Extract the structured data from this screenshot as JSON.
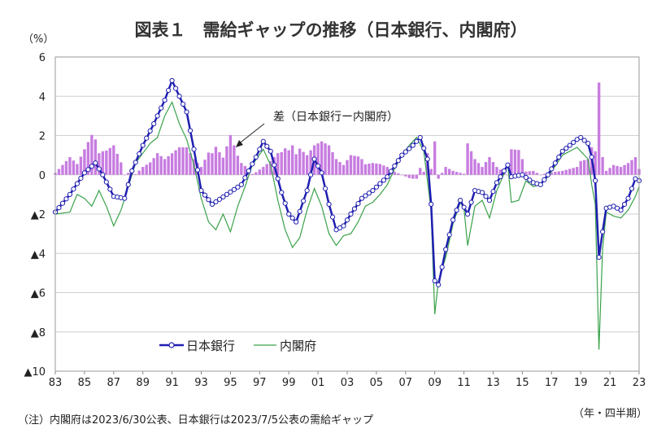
{
  "title": "図表１　需給ギャップの推移（日本銀行、内閣府）",
  "unit_label": "（%）",
  "period_label": "（年・四半期）",
  "note": "（注）内閣府は2023/6/30公表、日本銀行は2023/7/5公表の需給ギャップ",
  "annotation": "差（日本銀行ー内閣府）",
  "colors": {
    "boj": "#1f1fb0",
    "cao": "#3aa24a",
    "diff": "#c77ce0",
    "grid": "#d0d0d0",
    "axis": "#888888"
  },
  "chart_data": {
    "type": "line",
    "title": "図表１　需給ギャップの推移（日本銀行、内閣府）",
    "ylabel": "（%）",
    "xlabel": "（年・四半期）",
    "ylim": [
      -10,
      6
    ],
    "y_ticks": [
      6,
      4,
      2,
      0,
      -2,
      -4,
      -6,
      -8,
      -10
    ],
    "y_tick_labels": [
      "6",
      "4",
      "2",
      "0",
      "▲2",
      "▲4",
      "▲6",
      "▲8",
      "▲10"
    ],
    "x_tick_labels": [
      "83",
      "85",
      "87",
      "89",
      "91",
      "93",
      "95",
      "97",
      "99",
      "01",
      "03",
      "05",
      "07",
      "09",
      "11",
      "13",
      "15",
      "17",
      "19",
      "21",
      "23"
    ],
    "x_range": [
      "1983Q1",
      "2023Q1"
    ],
    "grid": "horizontal",
    "legend": "bottom-left",
    "anchors": {
      "boj": [
        [
          "1983Q1",
          -1.9
        ],
        [
          "1984Q1",
          -1.0
        ],
        [
          "1985Q1",
          0.1
        ],
        [
          "1985Q4",
          0.6
        ],
        [
          "1986Q2",
          0.0
        ],
        [
          "1987Q1",
          -1.1
        ],
        [
          "1987Q4",
          -1.2
        ],
        [
          "1988Q2",
          0.2
        ],
        [
          "1989Q1",
          1.5
        ],
        [
          "1989Q4",
          2.6
        ],
        [
          "1990Q3",
          3.8
        ],
        [
          "1991Q1",
          4.8
        ],
        [
          "1991Q3",
          4.0
        ],
        [
          "1992Q1",
          3.2
        ],
        [
          "1992Q3",
          1.3
        ],
        [
          "1993Q1",
          -0.8
        ],
        [
          "1993Q4",
          -1.5
        ],
        [
          "1994Q4",
          -1.0
        ],
        [
          "1995Q4",
          -0.5
        ],
        [
          "1996Q4",
          0.9
        ],
        [
          "1997Q2",
          1.7
        ],
        [
          "1997Q4",
          1.2
        ],
        [
          "1998Q3",
          -0.9
        ],
        [
          "1999Q1",
          -2.0
        ],
        [
          "1999Q3",
          -2.4
        ],
        [
          "2000Q2",
          -0.8
        ],
        [
          "2000Q4",
          0.8
        ],
        [
          "2001Q2",
          0.1
        ],
        [
          "2001Q4",
          -1.5
        ],
        [
          "2002Q2",
          -2.8
        ],
        [
          "2002Q4",
          -2.6
        ],
        [
          "2003Q2",
          -2.0
        ],
        [
          "2004Q1",
          -1.2
        ],
        [
          "2004Q4",
          -0.8
        ],
        [
          "2005Q4",
          -0.1
        ],
        [
          "2006Q4",
          1.0
        ],
        [
          "2007Q3",
          1.5
        ],
        [
          "2008Q1",
          1.9
        ],
        [
          "2008Q3",
          0.8
        ],
        [
          "2008Q4",
          -1.5
        ],
        [
          "2009Q1",
          -5.4
        ],
        [
          "2009Q2",
          -5.6
        ],
        [
          "2009Q4",
          -3.8
        ],
        [
          "2010Q2",
          -2.3
        ],
        [
          "2010Q4",
          -1.3
        ],
        [
          "2011Q2",
          -2.0
        ],
        [
          "2011Q4",
          -0.8
        ],
        [
          "2012Q2",
          -0.9
        ],
        [
          "2012Q4",
          -1.3
        ],
        [
          "2013Q2",
          -0.4
        ],
        [
          "2014Q1",
          0.5
        ],
        [
          "2014Q2",
          -0.1
        ],
        [
          "2015Q1",
          0.0
        ],
        [
          "2015Q4",
          -0.4
        ],
        [
          "2016Q2",
          -0.5
        ],
        [
          "2016Q4",
          0.0
        ],
        [
          "2017Q4",
          1.2
        ],
        [
          "2018Q4",
          1.8
        ],
        [
          "2019Q1",
          1.9
        ],
        [
          "2019Q3",
          1.6
        ],
        [
          "2019Q4",
          0.9
        ],
        [
          "2020Q1",
          -0.3
        ],
        [
          "2020Q2",
          -4.2
        ],
        [
          "2020Q3",
          -2.9
        ],
        [
          "2020Q4",
          -1.7
        ],
        [
          "2021Q2",
          -1.6
        ],
        [
          "2021Q4",
          -1.8
        ],
        [
          "2022Q2",
          -1.2
        ],
        [
          "2022Q4",
          -0.2
        ],
        [
          "2023Q1",
          -0.3
        ]
      ],
      "cao": [
        [
          "1983Q1",
          -2.0
        ],
        [
          "1984Q1",
          -1.9
        ],
        [
          "1984Q3",
          -1.0
        ],
        [
          "1985Q1",
          -1.2
        ],
        [
          "1985Q3",
          -1.6
        ],
        [
          "1986Q1",
          -0.8
        ],
        [
          "1986Q3",
          -1.6
        ],
        [
          "1987Q1",
          -2.6
        ],
        [
          "1987Q3",
          -1.8
        ],
        [
          "1988Q1",
          -0.6
        ],
        [
          "1988Q3",
          0.6
        ],
        [
          "1989Q1",
          1.1
        ],
        [
          "1989Q3",
          1.6
        ],
        [
          "1990Q1",
          1.9
        ],
        [
          "1990Q3",
          3.0
        ],
        [
          "1991Q1",
          3.7
        ],
        [
          "1991Q3",
          2.6
        ],
        [
          "1992Q1",
          1.8
        ],
        [
          "1992Q3",
          0.5
        ],
        [
          "1993Q1",
          -1.2
        ],
        [
          "1993Q3",
          -2.4
        ],
        [
          "1994Q1",
          -2.8
        ],
        [
          "1994Q3",
          -2.0
        ],
        [
          "1995Q1",
          -2.9
        ],
        [
          "1995Q3",
          -1.6
        ],
        [
          "1996Q1",
          -0.6
        ],
        [
          "1996Q3",
          0.5
        ],
        [
          "1997Q2",
          1.3
        ],
        [
          "1997Q4",
          0.5
        ],
        [
          "1998Q2",
          -1.3
        ],
        [
          "1998Q4",
          -2.8
        ],
        [
          "1999Q2",
          -3.7
        ],
        [
          "1999Q4",
          -3.2
        ],
        [
          "2000Q2",
          -1.8
        ],
        [
          "2000Q4",
          -0.7
        ],
        [
          "2001Q2",
          -1.6
        ],
        [
          "2001Q4",
          -3.0
        ],
        [
          "2002Q2",
          -3.6
        ],
        [
          "2002Q4",
          -3.1
        ],
        [
          "2003Q2",
          -3.0
        ],
        [
          "2003Q4",
          -2.4
        ],
        [
          "2004Q2",
          -1.6
        ],
        [
          "2004Q4",
          -1.4
        ],
        [
          "2005Q2",
          -1.0
        ],
        [
          "2005Q4",
          -0.5
        ],
        [
          "2006Q2",
          0.3
        ],
        [
          "2006Q4",
          1.0
        ],
        [
          "2007Q2",
          1.5
        ],
        [
          "2007Q4",
          1.9
        ],
        [
          "2008Q2",
          1.2
        ],
        [
          "2008Q4",
          -1.8
        ],
        [
          "2009Q1",
          -7.1
        ],
        [
          "2009Q2",
          -5.4
        ],
        [
          "2009Q4",
          -4.2
        ],
        [
          "2010Q2",
          -2.5
        ],
        [
          "2010Q4",
          -1.4
        ],
        [
          "2011Q1",
          -1.7
        ],
        [
          "2011Q2",
          -3.6
        ],
        [
          "2011Q4",
          -1.6
        ],
        [
          "2012Q2",
          -1.3
        ],
        [
          "2012Q4",
          -2.2
        ],
        [
          "2013Q2",
          -0.8
        ],
        [
          "2014Q1",
          0.5
        ],
        [
          "2014Q2",
          -1.4
        ],
        [
          "2014Q4",
          -1.3
        ],
        [
          "2015Q2",
          -0.3
        ],
        [
          "2015Q4",
          -0.6
        ],
        [
          "2016Q2",
          -0.5
        ],
        [
          "2016Q4",
          -0.1
        ],
        [
          "2017Q4",
          1.0
        ],
        [
          "2018Q4",
          1.4
        ],
        [
          "2019Q1",
          1.2
        ],
        [
          "2019Q3",
          0.8
        ],
        [
          "2019Q4",
          -0.5
        ],
        [
          "2020Q1",
          -1.5
        ],
        [
          "2020Q2",
          -8.9
        ],
        [
          "2020Q3",
          -3.8
        ],
        [
          "2020Q4",
          -1.9
        ],
        [
          "2021Q2",
          -2.1
        ],
        [
          "2021Q4",
          -2.2
        ],
        [
          "2022Q2",
          -1.8
        ],
        [
          "2022Q4",
          -1.1
        ],
        [
          "2023Q1",
          -0.6
        ]
      ]
    },
    "series": [
      {
        "name": "日本銀行",
        "style": "line-with-markers"
      },
      {
        "name": "内閣府",
        "style": "line"
      },
      {
        "name": "差（日本銀行ー内閣府）",
        "style": "bar"
      }
    ]
  }
}
